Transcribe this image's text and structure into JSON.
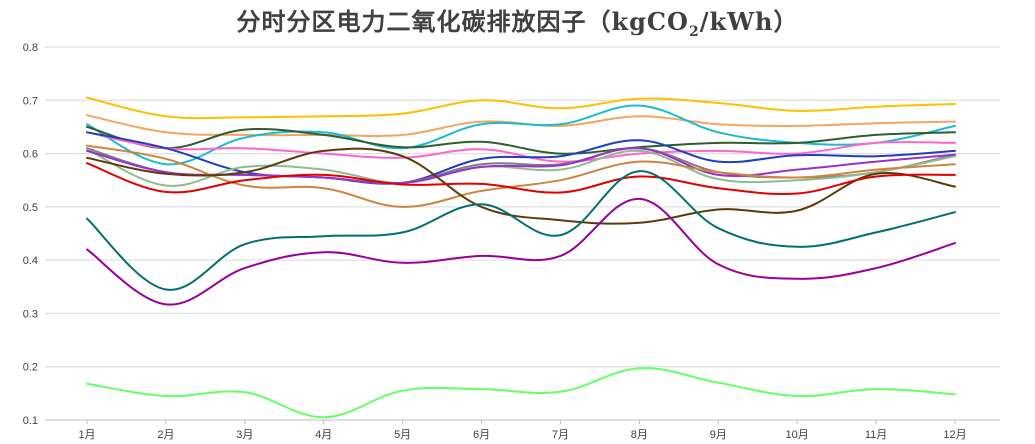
{
  "chart_data": {
    "type": "line",
    "title_main": "分时分区电力二氧化碳排放因子（kgCO",
    "title_sub": "2",
    "title_tail": "/kWh）",
    "xlabel": "",
    "ylabel": "",
    "categories": [
      "1月",
      "2月",
      "3月",
      "4月",
      "5月",
      "6月",
      "7月",
      "8月",
      "9月",
      "10月",
      "11月",
      "12月"
    ],
    "ylim": [
      0.1,
      0.8
    ],
    "yticks": [
      "0.1",
      "0.2",
      "0.3",
      "0.4",
      "0.5",
      "0.6",
      "0.7",
      "0.8"
    ],
    "grid": "horizontal",
    "legend": "none",
    "series": [
      {
        "color": "#ffc000",
        "values": [
          0.705,
          0.67,
          0.668,
          0.67,
          0.675,
          0.7,
          0.685,
          0.703,
          0.695,
          0.68,
          0.688,
          0.693
        ]
      },
      {
        "color": "#f4a460",
        "values": [
          0.672,
          0.64,
          0.635,
          0.635,
          0.635,
          0.66,
          0.652,
          0.67,
          0.655,
          0.652,
          0.657,
          0.66
        ]
      },
      {
        "color": "#17becf",
        "values": [
          0.655,
          0.58,
          0.63,
          0.64,
          0.61,
          0.655,
          0.655,
          0.69,
          0.64,
          0.62,
          0.62,
          0.652
        ]
      },
      {
        "color": "#2e5e2e",
        "values": [
          0.65,
          0.61,
          0.645,
          0.635,
          0.612,
          0.622,
          0.6,
          0.612,
          0.62,
          0.62,
          0.635,
          0.64
        ]
      },
      {
        "color": "#ff66cc",
        "values": [
          0.64,
          0.61,
          0.61,
          0.6,
          0.592,
          0.608,
          0.585,
          0.6,
          0.605,
          0.6,
          0.62,
          0.62
        ]
      },
      {
        "color": "#1f3fbf",
        "values": [
          0.64,
          0.61,
          0.565,
          0.555,
          0.545,
          0.59,
          0.595,
          0.625,
          0.585,
          0.597,
          0.595,
          0.605
        ]
      },
      {
        "color": "#7f7f7f",
        "values": [
          0.61,
          0.565,
          0.56,
          0.555,
          0.545,
          0.58,
          0.58,
          0.61,
          0.565,
          0.555,
          0.565,
          0.598
        ]
      },
      {
        "color": "#8fbc8f",
        "values": [
          0.608,
          0.54,
          0.575,
          0.57,
          0.545,
          0.575,
          0.57,
          0.605,
          0.552,
          0.55,
          0.565,
          0.595
        ]
      },
      {
        "color": "#9932cc",
        "values": [
          0.605,
          0.565,
          0.56,
          0.555,
          0.545,
          0.575,
          0.578,
          0.61,
          0.56,
          0.57,
          0.585,
          0.598
        ]
      },
      {
        "color": "#cd853f",
        "values": [
          0.615,
          0.59,
          0.54,
          0.535,
          0.5,
          0.53,
          0.55,
          0.585,
          0.565,
          0.555,
          0.57,
          0.58
        ]
      },
      {
        "color": "#5c3a0a",
        "values": [
          0.592,
          0.562,
          0.565,
          0.605,
          0.595,
          0.5,
          0.475,
          0.47,
          0.495,
          0.493,
          0.562,
          0.538
        ]
      },
      {
        "color": "#e00000",
        "values": [
          0.582,
          0.528,
          0.55,
          0.56,
          0.542,
          0.543,
          0.527,
          0.557,
          0.535,
          0.525,
          0.557,
          0.56
        ]
      },
      {
        "color": "#007070",
        "values": [
          0.478,
          0.345,
          0.43,
          0.445,
          0.452,
          0.505,
          0.447,
          0.567,
          0.46,
          0.425,
          0.452,
          0.49
        ]
      },
      {
        "color": "#990099",
        "values": [
          0.42,
          0.317,
          0.385,
          0.415,
          0.395,
          0.408,
          0.408,
          0.515,
          0.392,
          0.365,
          0.385,
          0.432
        ]
      },
      {
        "color": "#66ff66",
        "values": [
          0.168,
          0.145,
          0.152,
          0.105,
          0.155,
          0.158,
          0.153,
          0.197,
          0.17,
          0.145,
          0.158,
          0.148
        ]
      }
    ]
  }
}
